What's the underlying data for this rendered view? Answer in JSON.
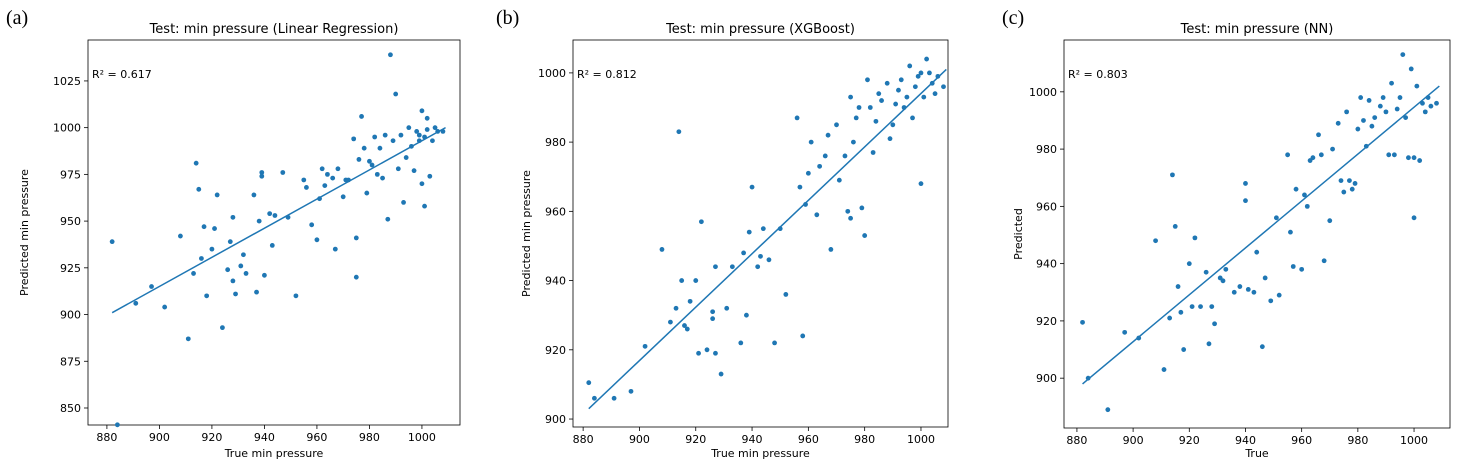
{
  "chart_data": [
    {
      "type": "scatter",
      "panel_label": "(a)",
      "title": "Test: min pressure (Linear Regression)",
      "xlabel": "True min pressure",
      "ylabel": "Predicted min pressure",
      "annotation": "R² = 0.617",
      "color": "#1f77b4",
      "xlim": [
        872.8,
        1014.5
      ],
      "ylim": [
        840.9,
        1046.9
      ],
      "xticks": [
        880,
        900,
        920,
        940,
        960,
        980,
        1000
      ],
      "yticks": [
        850,
        875,
        900,
        925,
        950,
        975,
        1000,
        1025
      ],
      "x": [
        882,
        884,
        891,
        897,
        902,
        908,
        911,
        913,
        914,
        915,
        916,
        917,
        918,
        920,
        921,
        922,
        924,
        926,
        927,
        928,
        928,
        929,
        931,
        932,
        933,
        936,
        937,
        938,
        939,
        939,
        940,
        942,
        943,
        944,
        947,
        949,
        952,
        955,
        956,
        958,
        960,
        961,
        962,
        963,
        964,
        966,
        967,
        968,
        970,
        971,
        972,
        974,
        975,
        975,
        976,
        977,
        978,
        979,
        980,
        981,
        982,
        983,
        984,
        985,
        986,
        987,
        988,
        989,
        990,
        991,
        992,
        993,
        994,
        995,
        996,
        997,
        998,
        999,
        1000,
        1000,
        1001,
        1001,
        1002,
        1003,
        1004,
        1005,
        1006,
        1008,
        1002,
        999
      ],
      "y": [
        939,
        841,
        906,
        915,
        904,
        942,
        887,
        922,
        981,
        967,
        930,
        947,
        910,
        935,
        946,
        964,
        893,
        924,
        939,
        952,
        918,
        911,
        926,
        932,
        922,
        964,
        912,
        950,
        976,
        974,
        921,
        954,
        937,
        953,
        976,
        952,
        910,
        972,
        968,
        948,
        940,
        962,
        978,
        969,
        975,
        973,
        935,
        978,
        963,
        972,
        972,
        994,
        941,
        920,
        983,
        1006,
        989,
        965,
        982,
        980,
        995,
        975,
        989,
        973,
        996,
        951,
        1039,
        993,
        1018,
        978,
        996,
        960,
        984,
        1000,
        990,
        977,
        998,
        993,
        1009,
        970,
        958,
        995,
        1005,
        974,
        993,
        1000,
        998,
        998,
        999,
        996
      ],
      "fit_line": {
        "x": [
          882,
          1009
        ],
        "y": [
          901,
          1000
        ]
      }
    },
    {
      "type": "scatter",
      "panel_label": "(b)",
      "title": "Test: min pressure (XGBoost)",
      "xlabel": "True min pressure",
      "ylabel": "Predicted min pressure",
      "annotation": "R² = 0.812",
      "color": "#1f77b4",
      "xlim": [
        876.4,
        1009.6
      ],
      "ylim": [
        897.7,
        1009.5
      ],
      "xticks": [
        880,
        900,
        920,
        940,
        960,
        980,
        1000
      ],
      "yticks": [
        900,
        920,
        940,
        960,
        980,
        1000
      ],
      "x": [
        882,
        884,
        891,
        897,
        902,
        908,
        911,
        913,
        914,
        915,
        916,
        917,
        918,
        920,
        921,
        922,
        924,
        926,
        926,
        927,
        927,
        929,
        931,
        933,
        936,
        937,
        938,
        939,
        940,
        942,
        943,
        944,
        946,
        948,
        950,
        952,
        956,
        957,
        958,
        959,
        960,
        961,
        963,
        964,
        966,
        967,
        968,
        970,
        971,
        973,
        974,
        975,
        975,
        976,
        977,
        978,
        979,
        980,
        981,
        982,
        983,
        984,
        985,
        986,
        988,
        989,
        990,
        991,
        992,
        993,
        994,
        995,
        996,
        997,
        998,
        999,
        1000,
        1000,
        1001,
        1002,
        1003,
        1004,
        1005,
        1006,
        1008
      ],
      "y": [
        910.5,
        906,
        906,
        908,
        921,
        949,
        928,
        932,
        983,
        940,
        927,
        926,
        934,
        940,
        919,
        957,
        920,
        931,
        929,
        944,
        919,
        913,
        932,
        944,
        922,
        948,
        930,
        954,
        967,
        944,
        947,
        955,
        946,
        922,
        955,
        936,
        987,
        967,
        924,
        962,
        971,
        980,
        959,
        973,
        976,
        982,
        949,
        985,
        969,
        976,
        960,
        993,
        958,
        980,
        987,
        990,
        961,
        953,
        998,
        990,
        977,
        986,
        994,
        992,
        997,
        981,
        985,
        991,
        995,
        998,
        990,
        993,
        1002,
        987,
        996,
        999,
        968,
        1000,
        993,
        1004,
        1000,
        997,
        994,
        999,
        996
      ],
      "fit_line": {
        "x": [
          882,
          1009
        ],
        "y": [
          903,
          1001
        ]
      }
    },
    {
      "type": "scatter",
      "panel_label": "(c)",
      "title": "Test: min pressure (NN)",
      "xlabel": "True",
      "ylabel": "Predicted",
      "annotation": "R² = 0.803",
      "color": "#1f77b4",
      "xlim": [
        875.4,
        1012.8
      ],
      "ylim": [
        882.6,
        1018.1
      ],
      "xticks": [
        880,
        900,
        920,
        940,
        960,
        980,
        1000
      ],
      "yticks": [
        900,
        920,
        940,
        960,
        980,
        1000
      ],
      "x": [
        882,
        884,
        891,
        897,
        902,
        908,
        911,
        913,
        914,
        915,
        916,
        917,
        918,
        920,
        921,
        922,
        924,
        926,
        927,
        928,
        929,
        931,
        932,
        933,
        936,
        938,
        940,
        940,
        941,
        943,
        944,
        946,
        947,
        949,
        951,
        952,
        955,
        956,
        957,
        958,
        960,
        961,
        962,
        963,
        964,
        966,
        967,
        968,
        970,
        971,
        973,
        974,
        975,
        976,
        977,
        978,
        979,
        980,
        981,
        982,
        983,
        984,
        985,
        986,
        988,
        989,
        990,
        991,
        992,
        993,
        994,
        995,
        996,
        997,
        998,
        999,
        1000,
        1000,
        1001,
        1002,
        1003,
        1004,
        1005,
        1006,
        1008
      ],
      "y": [
        919.5,
        900,
        889,
        916,
        914,
        948,
        903,
        921,
        971,
        953,
        932,
        923,
        910,
        940,
        925,
        949,
        925,
        937,
        912,
        925,
        919,
        935,
        934,
        938,
        930,
        932,
        968,
        962,
        931,
        930,
        944,
        911,
        935,
        927,
        956,
        929,
        978,
        951,
        939,
        966,
        938,
        964,
        960,
        976,
        977,
        985,
        978,
        941,
        955,
        980,
        989,
        969,
        965,
        993,
        969,
        966,
        968,
        987,
        998,
        990,
        981,
        997,
        988,
        991,
        995,
        998,
        993,
        978,
        1003,
        978,
        994,
        998,
        1013,
        991,
        977,
        1008,
        956,
        977,
        1002,
        976,
        996,
        993,
        998,
        995,
        996
      ],
      "fit_line": {
        "x": [
          882,
          1009
        ],
        "y": [
          898,
          1002
        ]
      }
    }
  ]
}
